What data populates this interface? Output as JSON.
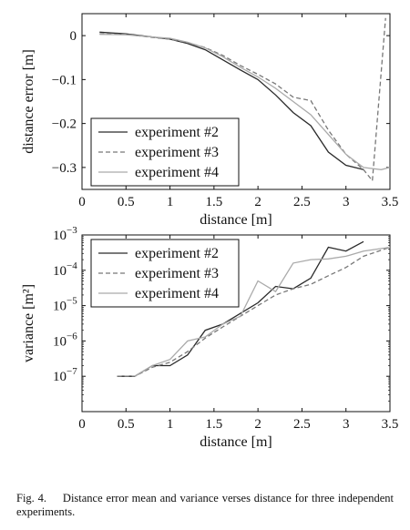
{
  "caption": {
    "number": "Fig. 4.",
    "text": "Distance error mean and variance verses distance for three independent experiments."
  },
  "chart_data": [
    {
      "type": "line",
      "xlabel": "distance [m]",
      "ylabel": "distance error [m]",
      "xlim": [
        0,
        3.5
      ],
      "ylim": [
        -0.35,
        0.05
      ],
      "xticks": [
        0,
        0.5,
        1,
        1.5,
        2,
        2.5,
        3,
        3.5
      ],
      "xtick_labels": [
        "0",
        "0.5",
        "1",
        "1.5",
        "2",
        "2.5",
        "3",
        "3.5"
      ],
      "yticks": [
        0,
        -0.1,
        -0.2,
        -0.3
      ],
      "ytick_labels": [
        "0",
        "−0.1",
        "−0.2",
        "−0.3"
      ],
      "legend_position": "bottom-left",
      "series": [
        {
          "name": "experiment #2",
          "color": "#2a2a2a",
          "dash": "solid",
          "x": [
            0.2,
            0.5,
            0.8,
            1.0,
            1.2,
            1.4,
            1.6,
            1.8,
            2.0,
            2.2,
            2.4,
            2.6,
            2.8,
            3.0,
            3.2
          ],
          "y": [
            0.008,
            0.004,
            -0.003,
            -0.008,
            -0.018,
            -0.032,
            -0.055,
            -0.078,
            -0.1,
            -0.135,
            -0.175,
            -0.205,
            -0.265,
            -0.295,
            -0.305
          ]
        },
        {
          "name": "experiment #3",
          "color": "#777777",
          "dash": "dashed",
          "x": [
            0.2,
            0.5,
            0.8,
            1.0,
            1.2,
            1.4,
            1.6,
            1.8,
            2.0,
            2.2,
            2.4,
            2.6,
            2.8,
            3.0,
            3.2,
            3.3,
            3.45
          ],
          "y": [
            0.004,
            0.003,
            -0.004,
            -0.008,
            -0.016,
            -0.027,
            -0.045,
            -0.068,
            -0.088,
            -0.11,
            -0.14,
            -0.148,
            -0.215,
            -0.27,
            -0.305,
            -0.33,
            0.04
          ]
        },
        {
          "name": "experiment #4",
          "color": "#aaaaaa",
          "dash": "solid",
          "x": [
            0.2,
            0.5,
            0.8,
            1.0,
            1.2,
            1.4,
            1.6,
            1.8,
            2.0,
            2.2,
            2.4,
            2.6,
            2.8,
            3.0,
            3.2,
            3.4,
            3.5
          ],
          "y": [
            0.003,
            0.002,
            -0.003,
            -0.006,
            -0.015,
            -0.028,
            -0.048,
            -0.072,
            -0.094,
            -0.12,
            -0.15,
            -0.18,
            -0.225,
            -0.27,
            -0.3,
            -0.305,
            -0.3
          ]
        }
      ]
    },
    {
      "type": "line",
      "xlabel": "distance [m]",
      "ylabel": "variance [m²]",
      "xlim": [
        0,
        3.5
      ],
      "yscale": "log",
      "ylim": [
        1e-08,
        0.001
      ],
      "xticks": [
        0,
        0.5,
        1,
        1.5,
        2,
        2.5,
        3,
        3.5
      ],
      "xtick_labels": [
        "0",
        "0.5",
        "1",
        "1.5",
        "2",
        "2.5",
        "3",
        "3.5"
      ],
      "yticks": [
        1e-07,
        1e-06,
        1e-05,
        0.0001,
        0.001
      ],
      "ytick_exponents": [
        "−7",
        "−6",
        "−5",
        "−4",
        "−3"
      ],
      "legend_position": "top-left",
      "series": [
        {
          "name": "experiment #2",
          "color": "#2a2a2a",
          "dash": "solid",
          "x": [
            0.4,
            0.6,
            0.8,
            1.0,
            1.2,
            1.4,
            1.6,
            1.8,
            2.0,
            2.2,
            2.4,
            2.6,
            2.8,
            3.0,
            3.2
          ],
          "y": [
            1e-07,
            1e-07,
            2e-07,
            2e-07,
            4e-07,
            2e-06,
            3e-06,
            6e-06,
            1.2e-05,
            3.5e-05,
            3e-05,
            6e-05,
            0.00045,
            0.00035,
            0.00065
          ]
        },
        {
          "name": "experiment #3",
          "color": "#777777",
          "dash": "dashed",
          "x": [
            0.4,
            0.6,
            0.8,
            1.0,
            1.2,
            1.4,
            1.6,
            1.8,
            2.0,
            2.2,
            2.4,
            2.6,
            2.8,
            3.0,
            3.2,
            3.5
          ],
          "y": [
            1e-07,
            1e-07,
            1.8e-07,
            2.5e-07,
            5e-07,
            1.2e-06,
            2.5e-06,
            5e-06,
            1e-05,
            2e-05,
            3e-05,
            4e-05,
            7e-05,
            0.00012,
            0.00025,
            0.00045
          ]
        },
        {
          "name": "experiment #4",
          "color": "#aaaaaa",
          "dash": "solid",
          "x": [
            0.6,
            0.8,
            1.0,
            1.2,
            1.4,
            1.6,
            1.8,
            2.0,
            2.2,
            2.4,
            2.6,
            2.8,
            3.0,
            3.2,
            3.5
          ],
          "y": [
            1e-07,
            2e-07,
            3e-07,
            1e-06,
            1.3e-06,
            3e-06,
            5e-06,
            5e-05,
            2.5e-05,
            0.00016,
            0.0002,
            0.00021,
            0.00025,
            0.00035,
            0.00045
          ]
        }
      ]
    }
  ]
}
